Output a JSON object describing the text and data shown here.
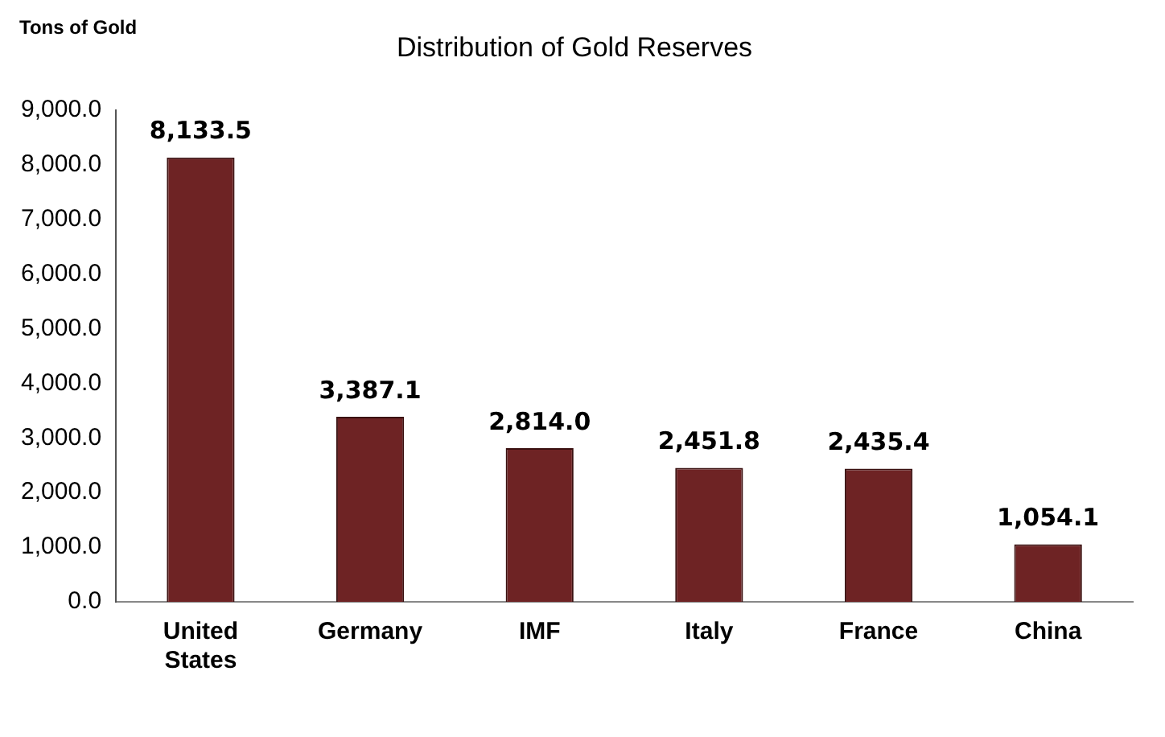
{
  "chart_data": {
    "type": "bar",
    "title": "Distribution of Gold Reserves",
    "ylabel": "Tons of Gold",
    "categories": [
      "United States",
      "Germany",
      "IMF",
      "Italy",
      "France",
      "China"
    ],
    "values": [
      8133.5,
      3387.1,
      2814.0,
      2451.8,
      2435.4,
      1054.1
    ],
    "value_labels": [
      "8,133.5",
      "3,387.1",
      "2,814.0",
      "2,451.8",
      "2,435.4",
      "1,054.1"
    ],
    "color": "#6e2324",
    "ylim": [
      0,
      9000
    ],
    "yticks": [
      {
        "value": 0,
        "label": "0.0"
      },
      {
        "value": 1000,
        "label": "1,000.0"
      },
      {
        "value": 2000,
        "label": "2,000.0"
      },
      {
        "value": 3000,
        "label": "3,000.0"
      },
      {
        "value": 4000,
        "label": "4,000.0"
      },
      {
        "value": 5000,
        "label": "5,000.0"
      },
      {
        "value": 6000,
        "label": "6,000.0"
      },
      {
        "value": 7000,
        "label": "7,000.0"
      },
      {
        "value": 8000,
        "label": "8,000.0"
      },
      {
        "value": 9000,
        "label": "9,000.0"
      }
    ],
    "grid": false,
    "legend": false
  }
}
